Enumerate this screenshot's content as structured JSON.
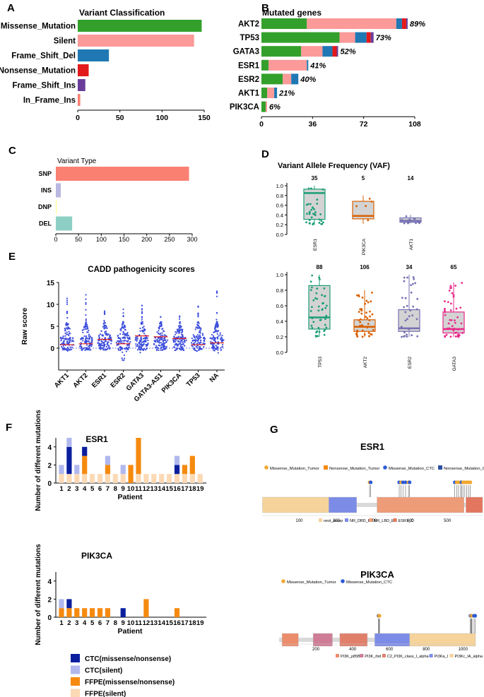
{
  "colors": {
    "green": "#33a02c",
    "pink": "#fb9a99",
    "blue": "#1f78b4",
    "red": "#e31a1c",
    "purple": "#6a3d9a",
    "salmon": "#fa8072",
    "lavender": "#b8b8e0",
    "yellow": "#ffff99",
    "teal": "#8ecfc5",
    "cadd_blue": "#3b4cdb",
    "cadd_red": "#e41a1c",
    "gray": "#d3d3d3",
    "vaf_green": "#1b9e77",
    "vaf_orange": "#d95f02",
    "vaf_purple": "#7570b3",
    "vaf_pink": "#e7298a",
    "ctc_ms": "#0a1e9e",
    "ctc_sil": "#b0b8ee",
    "ffpe_ms": "#f58a0f",
    "ffpe_sil": "#fcd9b5",
    "domain_tan": "#f5d39a",
    "domain_blue": "#7c8ce6",
    "domain_salmon": "#ee9b78",
    "domain_red": "#e3765e",
    "domain_orange": "#eb8c6a",
    "domain_mauve": "#cf7d96",
    "domain_rust": "#e07f6a"
  },
  "panels": {
    "A": "A",
    "B": "B",
    "C": "C",
    "D": "D",
    "E": "E",
    "F": "F",
    "G": "G"
  },
  "chart_data": [
    {
      "id": "A",
      "type": "bar",
      "orientation": "horizontal",
      "title": "Variant Classification",
      "categories": [
        "Missense_Mutation",
        "Silent",
        "Frame_Shift_Del",
        "Nonsense_Mutation",
        "Frame_Shift_Ins",
        "In_Frame_Ins"
      ],
      "values": [
        147,
        138,
        37,
        13,
        9,
        3
      ],
      "color_keys": [
        "green",
        "pink",
        "blue",
        "red",
        "purple",
        "salmon"
      ],
      "xlim": [
        0,
        150
      ],
      "xticks": [
        0,
        50,
        100,
        150
      ]
    },
    {
      "id": "B",
      "type": "bar",
      "orientation": "horizontal",
      "stacked": true,
      "title": "Mutated genes",
      "categories": [
        "AKT2",
        "TP53",
        "GATA3",
        "ESR1",
        "ESR2",
        "AKT1",
        "PIK3CA"
      ],
      "percent_labels": [
        "89%",
        "73%",
        "52%",
        "41%",
        "40%",
        "21%",
        "6%"
      ],
      "series": [
        {
          "name": "Missense_Mutation",
          "color_key": "green",
          "values": [
            32,
            55,
            28,
            5,
            15,
            4,
            3
          ]
        },
        {
          "name": "Silent",
          "color_key": "pink",
          "values": [
            63,
            11,
            15,
            27,
            6,
            5,
            1
          ]
        },
        {
          "name": "Frame_Shift_Del",
          "color_key": "blue",
          "values": [
            4,
            8,
            7,
            1,
            5,
            2,
            0
          ]
        },
        {
          "name": "Nonsense_Mutation",
          "color_key": "red",
          "values": [
            3,
            3,
            3,
            0,
            0,
            0,
            0
          ]
        },
        {
          "name": "Frame_Shift_Ins",
          "color_key": "purple",
          "values": [
            1,
            2,
            1,
            0,
            0,
            0,
            0
          ]
        }
      ],
      "xlim": [
        0,
        108
      ],
      "xticks": [
        0,
        36,
        72,
        108
      ]
    },
    {
      "id": "C",
      "type": "bar",
      "orientation": "horizontal",
      "title": "Variant Type",
      "categories": [
        "SNP",
        "INS",
        "DNP",
        "DEL"
      ],
      "values": [
        293,
        11,
        2,
        36
      ],
      "color_keys": [
        "salmon",
        "lavender",
        "yellow",
        "teal"
      ],
      "xlim": [
        0,
        300
      ],
      "xticks": [
        0,
        50,
        100,
        150,
        200,
        250,
        300
      ]
    },
    {
      "id": "D",
      "type": "boxplot",
      "title": "Variant Allele Frequency (VAF)",
      "ylim": [
        0,
        1
      ],
      "yticks": [
        "0.0",
        "0.2",
        "0.4",
        "0.6",
        "0.8",
        "1.0"
      ],
      "groups_top": [
        {
          "name": "ESR1",
          "count": "35",
          "q1": 0.31,
          "median": 0.85,
          "q3": 0.93,
          "min": 0.2,
          "max": 1.0,
          "color_key": "vaf_green"
        },
        {
          "name": "PIK3CA",
          "count": "5",
          "q1": 0.32,
          "median": 0.38,
          "q3": 0.68,
          "min": 0.22,
          "max": 0.8,
          "color_key": "vaf_orange"
        },
        {
          "name": "AKT1",
          "count": "14",
          "q1": 0.25,
          "median": 0.28,
          "q3": 0.34,
          "min": 0.23,
          "max": 0.4,
          "color_key": "vaf_purple"
        }
      ],
      "groups_bottom": [
        {
          "name": "TP53",
          "count": "88",
          "q1": 0.3,
          "median": 0.45,
          "q3": 0.86,
          "min": 0.2,
          "max": 1.0,
          "color_key": "vaf_green"
        },
        {
          "name": "AKT2",
          "count": "106",
          "q1": 0.27,
          "median": 0.33,
          "q3": 0.42,
          "min": 0.2,
          "max": 0.8,
          "color_key": "vaf_orange"
        },
        {
          "name": "ESR2",
          "count": "34",
          "q1": 0.27,
          "median": 0.31,
          "q3": 0.55,
          "min": 0.2,
          "max": 1.0,
          "color_key": "vaf_purple"
        },
        {
          "name": "GATA3",
          "count": "65",
          "q1": 0.25,
          "median": 0.3,
          "q3": 0.52,
          "min": 0.2,
          "max": 0.9,
          "color_key": "vaf_pink"
        }
      ]
    },
    {
      "id": "E",
      "type": "scatter",
      "subtype": "beeswarm",
      "title": "CADD pathogenicity scores",
      "ylabel": "Raw score",
      "categories": [
        "AKT1",
        "AKT2",
        "ESR1",
        "ESR2",
        "GATA3",
        "GATA3-AS1",
        "PIK3CA",
        "TP53",
        "NA"
      ],
      "medians": [
        0.8,
        1.0,
        2.0,
        1.0,
        2.8,
        2.6,
        2.2,
        0.8,
        1.2
      ],
      "ymin": [
        -1.0,
        -1.0,
        -1.0,
        -3.5,
        -1.0,
        -0.8,
        -0.5,
        -0.8,
        -1.5
      ],
      "ymax": [
        12.0,
        13.0,
        8.5,
        9.0,
        10.0,
        8.0,
        8.0,
        10.0,
        13.0
      ],
      "ylim": [
        -5,
        15
      ],
      "yticks": [
        "0",
        "5",
        "10",
        "15"
      ]
    },
    {
      "id": "F1",
      "type": "bar",
      "stacked": true,
      "title": "ESR1",
      "xlabel": "Patient",
      "ylabel": "Number of different mutations",
      "categories": [
        "1",
        "2",
        "3",
        "4",
        "5",
        "6",
        "7",
        "8",
        "9",
        "10",
        "11",
        "12",
        "13",
        "14",
        "15",
        "16",
        "17",
        "18",
        "19"
      ],
      "series": [
        {
          "name": "FFPE(silent)",
          "color_key": "ffpe_sil",
          "values": [
            1,
            1,
            1,
            1,
            1,
            1,
            1,
            1,
            1,
            0,
            1,
            1,
            1,
            1,
            1,
            1,
            1,
            1,
            1
          ]
        },
        {
          "name": "FFPE(missense/nonsense)",
          "color_key": "ffpe_ms",
          "values": [
            0,
            0,
            0,
            2,
            0,
            0,
            1,
            0,
            0,
            2,
            4,
            0,
            0,
            0,
            0,
            0,
            1,
            2,
            0
          ]
        },
        {
          "name": "CTC(missense/nonsense)",
          "color_key": "ctc_ms",
          "values": [
            0,
            3,
            0,
            1,
            0,
            0,
            0,
            0,
            0,
            0,
            0,
            0,
            0,
            0,
            0,
            1,
            0,
            0,
            0
          ]
        },
        {
          "name": "CTC(silent)",
          "color_key": "ctc_sil",
          "values": [
            1,
            1,
            1,
            0,
            0,
            0,
            1,
            0,
            1,
            0,
            0,
            0,
            0,
            0,
            0,
            1,
            0,
            0,
            0
          ]
        }
      ],
      "ylim": [
        0,
        5
      ],
      "yticks": [
        "0",
        "2",
        "4"
      ]
    },
    {
      "id": "F2",
      "type": "bar",
      "stacked": true,
      "title": "PIK3CA",
      "xlabel": "Patient",
      "ylabel": "Number of different mutations",
      "categories": [
        "1",
        "2",
        "3",
        "4",
        "5",
        "6",
        "7",
        "8",
        "9",
        "10",
        "11",
        "12",
        "13",
        "14",
        "15",
        "16",
        "17",
        "18",
        "19"
      ],
      "series": [
        {
          "name": "FFPE(silent)",
          "color_key": "ffpe_sil",
          "values": [
            0,
            0,
            0,
            0,
            0,
            0,
            0,
            0,
            0,
            0,
            0,
            0,
            0,
            0,
            0,
            0,
            0,
            0,
            0
          ]
        },
        {
          "name": "FFPE(missense/nonsense)",
          "color_key": "ffpe_ms",
          "values": [
            1,
            1,
            1,
            1,
            1,
            1,
            1,
            0,
            0,
            0,
            0,
            2,
            0,
            0,
            0,
            1,
            0,
            0,
            0
          ]
        },
        {
          "name": "CTC(missense/nonsense)",
          "color_key": "ctc_ms",
          "values": [
            0,
            1,
            0,
            0,
            0,
            0,
            0,
            0,
            1,
            0,
            0,
            0,
            0,
            0,
            0,
            0,
            0,
            0,
            0
          ]
        },
        {
          "name": "CTC(silent)",
          "color_key": "ctc_sil",
          "values": [
            1,
            0,
            0,
            0,
            0,
            0,
            0,
            0,
            0,
            0,
            0,
            0,
            0,
            0,
            0,
            0,
            0,
            0,
            0
          ]
        }
      ],
      "ylim": [
        0,
        5
      ],
      "yticks": [
        "0",
        "2",
        "4"
      ]
    },
    {
      "id": "G1",
      "type": "lollipop",
      "title": "ESR1",
      "legend": [
        "Missense_Mutation_Tumor",
        "Nonsense_Mutation_Tumor",
        "Missense_Mutation_CTC",
        "Nonsense_Mutation_CTC"
      ],
      "legend_color_keys": [
        "vaf_orange_light",
        "ffpe_ms",
        "blue_dot",
        "blue_sq"
      ],
      "domains": [
        "oest_recep",
        "NR_DBD_ER",
        "NR_LBD_ER",
        "ESR1_C"
      ],
      "xlim": [
        0,
        595
      ],
      "xticks": [
        100,
        200,
        300,
        400,
        500
      ],
      "protein_length": 595,
      "domain_ranges": [
        [
          1,
          180,
          "domain_tan"
        ],
        [
          180,
          255,
          "domain_blue"
        ],
        [
          310,
          545,
          "domain_salmon"
        ],
        [
          550,
          595,
          "domain_red"
        ]
      ]
    },
    {
      "id": "G2",
      "type": "lollipop",
      "title": "PIK3CA",
      "legend": [
        "Missense_Mutation_Tumor",
        "Missense_Mutation_CTC"
      ],
      "domains": [
        "PI3K_p85B",
        "PI3K_rbd",
        "C2_PI3K_class_I_alpha",
        "PI3Ka_I",
        "PI3Kc_IA_alpha"
      ],
      "xlim": [
        0,
        1068
      ],
      "xticks": [
        200,
        400,
        600,
        800,
        1000
      ],
      "protein_length": 1068,
      "domain_ranges": [
        [
          16,
          105,
          "domain_orange"
        ],
        [
          185,
          290,
          "domain_mauve"
        ],
        [
          330,
          480,
          "domain_rust"
        ],
        [
          520,
          710,
          "domain_blue"
        ],
        [
          710,
          1068,
          "domain_tan"
        ]
      ]
    }
  ],
  "legend_F": [
    "CTC(missense/nonsense)",
    "CTC(silent)",
    "FFPE(missense/nonsense)",
    "FFPE(silent)"
  ]
}
